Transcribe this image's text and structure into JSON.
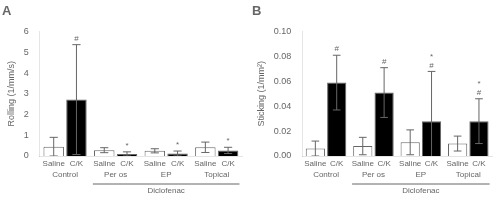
{
  "chart_data": [
    {
      "type": "bar",
      "title": "A",
      "y_label": "Rolling (1/mm/s)",
      "categories": [
        "Control",
        "Per os",
        "EP",
        "Topical"
      ],
      "series": [
        {
          "name": "Saline",
          "color": "#ffffff",
          "values": [
            0.45,
            0.28,
            0.25,
            0.42
          ],
          "errors": [
            0.45,
            0.12,
            0.1,
            0.25
          ]
        },
        {
          "name": "C/K",
          "color": "#000000",
          "values": [
            2.72,
            0.1,
            0.12,
            0.27
          ],
          "errors": [
            2.65,
            0.1,
            0.12,
            0.15
          ],
          "annotations": [
            [
              "#"
            ],
            [
              "*"
            ],
            [
              "*"
            ],
            [
              "*"
            ]
          ]
        }
      ],
      "bracket": {
        "text": "Diclofenac",
        "from": "Per os",
        "to": "Topical"
      },
      "ylim": [
        0,
        6
      ],
      "yticks": [
        0,
        1,
        2,
        3,
        4,
        5,
        6
      ],
      "grid": false,
      "legend": false
    },
    {
      "type": "bar",
      "title": "B",
      "y_label": "Sticking (1/mm²)",
      "categories": [
        "Control",
        "Per os",
        "EP",
        "Topical"
      ],
      "series": [
        {
          "name": "Saline",
          "color": "#ffffff",
          "values": [
            0.006,
            0.008,
            0.011,
            0.01
          ],
          "errors": [
            0.006,
            0.007,
            0.01,
            0.006
          ]
        },
        {
          "name": "C/K",
          "color": "#000000",
          "values": [
            0.059,
            0.051,
            0.028,
            0.028
          ],
          "errors": [
            0.022,
            0.02,
            0.04,
            0.018
          ],
          "annotations": [
            [
              "#"
            ],
            [
              "#"
            ],
            [
              "*",
              "#"
            ],
            [
              "*",
              "#"
            ]
          ]
        }
      ],
      "bracket": {
        "text": "Diclofenac",
        "from": "Per os",
        "to": "Topical"
      },
      "ylim": [
        0,
        0.1
      ],
      "yticks": [
        {
          "value": 0.0,
          "label": "0.00"
        },
        {
          "value": 0.02,
          "label": "0.02"
        },
        {
          "value": 0.04,
          "label": "0.04"
        },
        {
          "value": 0.06,
          "label": "0.06"
        },
        {
          "value": 0.08,
          "label": "0.08"
        },
        {
          "value": 0.1,
          "label": "0.10"
        }
      ],
      "grid": false,
      "legend": false
    }
  ]
}
